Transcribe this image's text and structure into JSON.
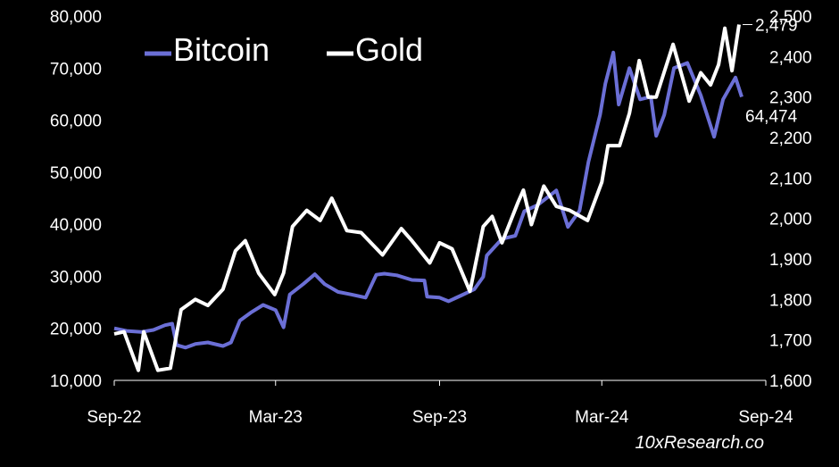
{
  "chart_data": {
    "type": "line",
    "title": "",
    "xlabel": "",
    "ylabel_left": "",
    "ylabel_right": "",
    "x_ticks": [
      "Sep-22",
      "Mar-23",
      "Sep-23",
      "Mar-24",
      "Sep-24"
    ],
    "y_left": {
      "min": 10000,
      "max": 80000,
      "ticks": [
        "10,000",
        "20,000",
        "30,000",
        "40,000",
        "50,000",
        "60,000",
        "70,000",
        "80,000"
      ]
    },
    "y_right": {
      "min": 1600,
      "max": 2500,
      "ticks": [
        "1,600",
        "1,700",
        "1,800",
        "1,900",
        "2,000",
        "2,100",
        "2,200",
        "2,300",
        "2,400",
        "2,500"
      ]
    },
    "legend": {
      "position": "top-left",
      "entries": [
        "Bitcoin",
        "Gold"
      ]
    },
    "grid": false,
    "series": [
      {
        "name": "Bitcoin",
        "axis": "left",
        "color": "#6b6fd6",
        "last_value_label": "64,474",
        "points": [
          [
            "2022-09-01",
            20000
          ],
          [
            "2022-09-15",
            19500
          ],
          [
            "2022-10-01",
            19300
          ],
          [
            "2022-10-15",
            19700
          ],
          [
            "2022-10-28",
            20600
          ],
          [
            "2022-11-05",
            20900
          ],
          [
            "2022-11-10",
            16800
          ],
          [
            "2022-11-20",
            16300
          ],
          [
            "2022-12-01",
            17000
          ],
          [
            "2022-12-15",
            17300
          ],
          [
            "2023-01-01",
            16600
          ],
          [
            "2023-01-10",
            17300
          ],
          [
            "2023-01-20",
            21500
          ],
          [
            "2023-02-01",
            23000
          ],
          [
            "2023-02-15",
            24500
          ],
          [
            "2023-03-01",
            23500
          ],
          [
            "2023-03-10",
            20200
          ],
          [
            "2023-03-17",
            26500
          ],
          [
            "2023-04-01",
            28500
          ],
          [
            "2023-04-14",
            30400
          ],
          [
            "2023-04-25",
            28500
          ],
          [
            "2023-05-10",
            27000
          ],
          [
            "2023-05-25",
            26500
          ],
          [
            "2023-06-10",
            25900
          ],
          [
            "2023-06-22",
            30300
          ],
          [
            "2023-07-01",
            30500
          ],
          [
            "2023-07-15",
            30200
          ],
          [
            "2023-08-01",
            29300
          ],
          [
            "2023-08-15",
            29200
          ],
          [
            "2023-08-18",
            26100
          ],
          [
            "2023-09-01",
            25900
          ],
          [
            "2023-09-11",
            25200
          ],
          [
            "2023-09-25",
            26300
          ],
          [
            "2023-10-10",
            27500
          ],
          [
            "2023-10-20",
            29900
          ],
          [
            "2023-10-24",
            34000
          ],
          [
            "2023-11-10",
            37200
          ],
          [
            "2023-11-25",
            37800
          ],
          [
            "2023-12-05",
            42500
          ],
          [
            "2023-12-20",
            43700
          ],
          [
            "2024-01-10",
            46500
          ],
          [
            "2024-01-23",
            39500
          ],
          [
            "2024-02-05",
            42600
          ],
          [
            "2024-02-15",
            52000
          ],
          [
            "2024-02-28",
            61000
          ],
          [
            "2024-03-05",
            67000
          ],
          [
            "2024-03-14",
            73000
          ],
          [
            "2024-03-20",
            63000
          ],
          [
            "2024-04-01",
            70000
          ],
          [
            "2024-04-13",
            64000
          ],
          [
            "2024-04-25",
            64500
          ],
          [
            "2024-05-01",
            57000
          ],
          [
            "2024-05-10",
            61000
          ],
          [
            "2024-05-21",
            70000
          ],
          [
            "2024-06-05",
            71000
          ],
          [
            "2024-06-20",
            64800
          ],
          [
            "2024-07-05",
            56800
          ],
          [
            "2024-07-15",
            64000
          ],
          [
            "2024-07-29",
            68200
          ],
          [
            "2024-08-05",
            64474
          ]
        ]
      },
      {
        "name": "Gold",
        "axis": "right",
        "color": "#ffffff",
        "last_value_label": "2,479",
        "points": [
          [
            "2022-09-01",
            1715
          ],
          [
            "2022-09-12",
            1720
          ],
          [
            "2022-09-28",
            1625
          ],
          [
            "2022-10-04",
            1720
          ],
          [
            "2022-10-20",
            1625
          ],
          [
            "2022-11-03",
            1630
          ],
          [
            "2022-11-15",
            1775
          ],
          [
            "2022-12-01",
            1800
          ],
          [
            "2022-12-15",
            1785
          ],
          [
            "2023-01-01",
            1825
          ],
          [
            "2023-01-15",
            1920
          ],
          [
            "2023-01-26",
            1945
          ],
          [
            "2023-02-10",
            1865
          ],
          [
            "2023-02-28",
            1812
          ],
          [
            "2023-03-10",
            1865
          ],
          [
            "2023-03-20",
            1980
          ],
          [
            "2023-04-05",
            2020
          ],
          [
            "2023-04-20",
            1995
          ],
          [
            "2023-05-03",
            2050
          ],
          [
            "2023-05-20",
            1970
          ],
          [
            "2023-06-05",
            1965
          ],
          [
            "2023-06-29",
            1910
          ],
          [
            "2023-07-20",
            1975
          ],
          [
            "2023-08-01",
            1945
          ],
          [
            "2023-08-21",
            1890
          ],
          [
            "2023-09-01",
            1940
          ],
          [
            "2023-09-15",
            1925
          ],
          [
            "2023-10-05",
            1820
          ],
          [
            "2023-10-20",
            1980
          ],
          [
            "2023-10-30",
            2005
          ],
          [
            "2023-11-10",
            1940
          ],
          [
            "2023-11-28",
            2040
          ],
          [
            "2023-12-04",
            2070
          ],
          [
            "2023-12-13",
            1985
          ],
          [
            "2023-12-27",
            2080
          ],
          [
            "2024-01-10",
            2030
          ],
          [
            "2024-01-25",
            2020
          ],
          [
            "2024-02-14",
            1995
          ],
          [
            "2024-03-01",
            2090
          ],
          [
            "2024-03-08",
            2180
          ],
          [
            "2024-03-21",
            2180
          ],
          [
            "2024-04-01",
            2260
          ],
          [
            "2024-04-12",
            2390
          ],
          [
            "2024-04-22",
            2300
          ],
          [
            "2024-05-01",
            2300
          ],
          [
            "2024-05-20",
            2430
          ],
          [
            "2024-06-07",
            2290
          ],
          [
            "2024-06-20",
            2360
          ],
          [
            "2024-07-01",
            2330
          ],
          [
            "2024-07-10",
            2380
          ],
          [
            "2024-07-17",
            2470
          ],
          [
            "2024-07-25",
            2365
          ],
          [
            "2024-08-02",
            2479
          ]
        ]
      }
    ]
  },
  "source": "10xResearch.co"
}
